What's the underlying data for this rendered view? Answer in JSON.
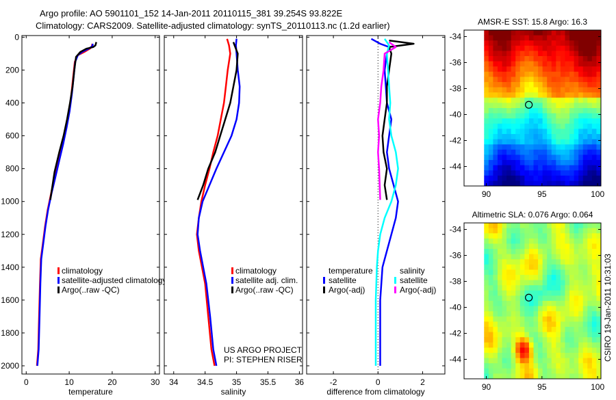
{
  "header": {
    "line1": "Argo profile: AO 5901101_152 14-Jan-2011 20110115_381 39.254S 93.822E",
    "line2": "Climatology: CARS2009. Satellite-adjusted climatology: synTS_20110113.nc (1.2d earlier)"
  },
  "side_label": "CSIRO 19-Jan-2011 10:31:03",
  "colors": {
    "climatology": "#ff0000",
    "satellite": "#0000ff",
    "argo": "#000000",
    "salinity_satellite": "#00ffff",
    "salinity_argo": "#ff00ff"
  },
  "chart_data": [
    {
      "type": "line",
      "title": "",
      "xlabel": "temperature",
      "ylabel": "",
      "xlim": [
        -1,
        31
      ],
      "ylim": [
        2050,
        -10
      ],
      "y_reversed": true,
      "xticks": [
        0,
        10,
        20,
        30
      ],
      "yticks": [
        0,
        200,
        400,
        600,
        800,
        1000,
        1200,
        1400,
        1600,
        1800,
        2000
      ],
      "series": [
        {
          "name": "climatology",
          "color": "#ff0000",
          "x": [
            15.4,
            15.2,
            14.8,
            13.5,
            12.0,
            11.3,
            10.9,
            10.5,
            10.0,
            9.3,
            8.5,
            7.6,
            6.6,
            5.8,
            5.0,
            4.4,
            3.9,
            3.4,
            3.2,
            3.0,
            2.8,
            2.5
          ],
          "y": [
            40,
            60,
            70,
            90,
            110,
            150,
            250,
            350,
            450,
            550,
            650,
            750,
            850,
            950,
            1050,
            1150,
            1250,
            1350,
            1500,
            1700,
            1900,
            2000
          ]
        },
        {
          "name": "satellite-adjusted climatology",
          "color": "#0000ff",
          "x": [
            15.5,
            15.4,
            14.5,
            13.0,
            12.0,
            11.4,
            11.0,
            10.6,
            10.1,
            9.4,
            8.6,
            7.7,
            6.8,
            5.9,
            5.1,
            4.5,
            4.0,
            3.5,
            3.3,
            3.1,
            2.9,
            2.6
          ],
          "y": [
            40,
            55,
            70,
            90,
            110,
            150,
            250,
            350,
            450,
            550,
            650,
            750,
            850,
            950,
            1050,
            1150,
            1250,
            1350,
            1500,
            1700,
            1900,
            2000
          ]
        },
        {
          "name": "Argo(..raw -QC)",
          "color": "#000000",
          "x": [
            16.3,
            16.1,
            15.6,
            14.0,
            12.6,
            11.6,
            11.2,
            10.8,
            10.2,
            9.5,
            8.7,
            7.7,
            6.6,
            5.6
          ],
          "y": [
            30,
            50,
            60,
            70,
            90,
            120,
            200,
            300,
            400,
            500,
            600,
            700,
            820,
            990
          ]
        }
      ],
      "legend": {
        "position": "bottom-left",
        "entries": [
          "climatology",
          "satellite-adjusted climatology",
          "Argo(..raw -QC)"
        ]
      }
    },
    {
      "type": "line",
      "title": "",
      "xlabel": "salinity",
      "ylabel": "",
      "xlim": [
        33.85,
        36.05
      ],
      "ylim": [
        2050,
        -10
      ],
      "y_reversed": true,
      "xticks": [
        34,
        34.5,
        35,
        35.5,
        36
      ],
      "xticklabels": [
        "34",
        "34.5",
        "35",
        "35.5",
        "36"
      ],
      "series": [
        {
          "name": "climatology",
          "color": "#ff0000",
          "x": [
            34.85,
            34.88,
            34.9,
            34.86,
            34.83,
            34.8,
            34.75,
            34.7,
            34.63,
            34.57,
            34.5,
            34.44,
            34.4,
            34.37,
            34.4,
            34.45,
            34.5,
            34.55,
            34.6,
            34.65
          ],
          "y": [
            10,
            50,
            100,
            200,
            300,
            400,
            500,
            600,
            700,
            800,
            900,
            1000,
            1100,
            1200,
            1300,
            1400,
            1500,
            1700,
            1900,
            2000
          ]
        },
        {
          "name": "satellite adj. clim.",
          "color": "#0000ff",
          "x": [
            35.0,
            34.99,
            35.0,
            35.02,
            35.05,
            35.04,
            35.0,
            34.92,
            34.8,
            34.68,
            34.57,
            34.46,
            34.4,
            34.38,
            34.42,
            34.47,
            34.52,
            34.58,
            34.63,
            34.68
          ],
          "y": [
            10,
            50,
            100,
            200,
            300,
            400,
            500,
            600,
            700,
            800,
            900,
            1000,
            1100,
            1200,
            1300,
            1400,
            1500,
            1700,
            1900,
            2000
          ]
        },
        {
          "name": "Argo(..raw -QC)",
          "color": "#000000",
          "x": [
            34.95,
            34.97,
            35.02,
            35.0,
            34.95,
            34.9,
            34.82,
            34.74,
            34.66,
            34.55,
            34.47,
            34.38
          ],
          "y": [
            30,
            50,
            100,
            200,
            300,
            400,
            500,
            600,
            700,
            800,
            900,
            990
          ]
        }
      ],
      "legend": {
        "position": "bottom-right",
        "entries": [
          "climatology",
          "satellite adj. clim.",
          "Argo(..raw -QC)"
        ]
      },
      "annotation": [
        "US ARGO PROJECT",
        "PI: STEPHEN RISER"
      ]
    },
    {
      "type": "line",
      "title": "",
      "xlabel": "difference from climatology",
      "ylabel": "",
      "xlim": [
        -3.2,
        3.0
      ],
      "ylim": [
        2050,
        -10
      ],
      "y_reversed": true,
      "xticks": [
        -2,
        0,
        2
      ],
      "zero_line": true,
      "series": [
        {
          "name": "temperature satellite",
          "color": "#0000ff",
          "x": [
            -0.3,
            0.1,
            0.5,
            0.4,
            0.3,
            0.35,
            0.4,
            0.6,
            0.5,
            0.4,
            0.5,
            0.7,
            0.9,
            0.8,
            0.6,
            0.4,
            0.2,
            0.1,
            0.1,
            0.1
          ],
          "y": [
            10,
            40,
            60,
            100,
            200,
            300,
            400,
            500,
            600,
            700,
            800,
            900,
            1000,
            1100,
            1200,
            1300,
            1400,
            1600,
            1800,
            2000
          ]
        },
        {
          "name": "temperature Argo(-adj)",
          "color": "#000000",
          "x": [
            0.5,
            1.6,
            0.5,
            0.6,
            0.5,
            0.4,
            0.4,
            0.3,
            0.2,
            0.25,
            0.4,
            0.3,
            0.4
          ],
          "y": [
            20,
            40,
            60,
            100,
            200,
            300,
            400,
            500,
            600,
            700,
            800,
            900,
            990
          ]
        },
        {
          "name": "salinity satellite",
          "color": "#00ffff",
          "x": [
            0.3,
            0.5,
            0.4,
            0.45,
            0.5,
            0.55,
            0.5,
            0.6,
            0.8,
            0.9,
            0.8,
            0.6,
            0.3,
            0.1,
            0.0,
            -0.05,
            -0.1,
            -0.1,
            -0.1
          ],
          "y": [
            10,
            50,
            100,
            200,
            300,
            400,
            500,
            600,
            700,
            800,
            900,
            1000,
            1100,
            1200,
            1300,
            1400,
            1600,
            1800,
            2000
          ]
        },
        {
          "name": "salinity Argo(-adj)",
          "color": "#ff00ff",
          "x": [
            0.5,
            0.8,
            0.3,
            0.25,
            0.15,
            0.1,
            0.0,
            0.05,
            0.0,
            0.05,
            0.1
          ],
          "y": [
            30,
            60,
            100,
            200,
            300,
            400,
            500,
            600,
            700,
            800,
            990
          ]
        }
      ],
      "legend": {
        "position": "bottom",
        "groups": [
          {
            "title": "temperature",
            "entries": [
              "satellite",
              "Argo(-adj)"
            ]
          },
          {
            "title": "salinity",
            "entries": [
              "satellite",
              "Argo(-adj)"
            ]
          }
        ]
      }
    },
    {
      "type": "heatmap",
      "title": "AMSR-E SST: 15.8 Argo: 16.3",
      "xlim": [
        88,
        100.3
      ],
      "ylim": [
        -45.5,
        -33.5
      ],
      "xticks": [
        90,
        95,
        100
      ],
      "yticks": [
        -34,
        -36,
        -38,
        -40,
        -42,
        -44
      ],
      "data_extent": {
        "lon": [
          89.8,
          100.3
        ],
        "lat": [
          -45.5,
          -33.5
        ]
      },
      "colormap": "jet",
      "description_bands": "warm north, cool south",
      "marker": {
        "lon": 93.82,
        "lat": -39.25
      }
    },
    {
      "type": "heatmap",
      "title": "Altimetric SLA: 0.076 Argo: 0.064",
      "xlim": [
        88,
        100.3
      ],
      "ylim": [
        -45.5,
        -33.5
      ],
      "xticks": [
        90,
        95,
        100
      ],
      "yticks": [
        -34,
        -36,
        -38,
        -40,
        -42,
        -44
      ],
      "data_extent": {
        "lon": [
          89.8,
          100.3
        ],
        "lat": [
          -45.5,
          -33.5
        ]
      },
      "colormap": "jet",
      "marker": {
        "lon": 93.82,
        "lat": -39.25
      }
    }
  ]
}
